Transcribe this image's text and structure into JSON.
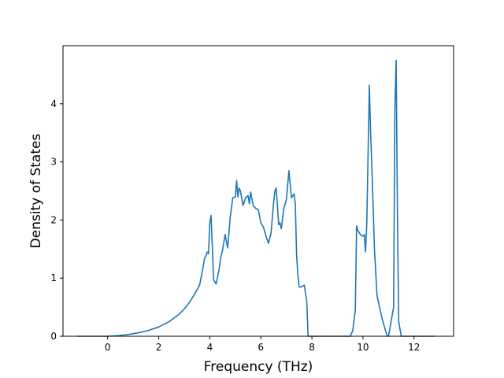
{
  "chart_data": {
    "type": "line",
    "title": "",
    "xlabel": "Frequency (THz)",
    "ylabel": "Density of States",
    "xlim": [
      -1.75,
      13.55
    ],
    "ylim": [
      0,
      5.0
    ],
    "xticks": [
      0,
      2,
      4,
      6,
      8,
      10,
      12
    ],
    "yticks": [
      0,
      1,
      2,
      3,
      4
    ],
    "grid": false,
    "legend": "none",
    "line_color": "#1f77b4",
    "series": [
      {
        "x": [
          -1.2,
          -0.6,
          0.0,
          0.4,
          0.8,
          1.2,
          1.6,
          2.0,
          2.4,
          2.8,
          3.0,
          3.2,
          3.4,
          3.6,
          3.7,
          3.8,
          3.85,
          3.9,
          3.95,
          4.0,
          4.05,
          4.15,
          4.25,
          4.35,
          4.45,
          4.5,
          4.6,
          4.7,
          4.8,
          4.9,
          5.0,
          5.05,
          5.1,
          5.15,
          5.2,
          5.3,
          5.4,
          5.5,
          5.55,
          5.6,
          5.7,
          5.8,
          5.9,
          6.0,
          6.1,
          6.2,
          6.3,
          6.4,
          6.5,
          6.55,
          6.6,
          6.7,
          6.75,
          6.8,
          6.9,
          7.0,
          7.1,
          7.2,
          7.3,
          7.35,
          7.4,
          7.45,
          7.5,
          7.6,
          7.7,
          7.8,
          7.85,
          7.9,
          8.0,
          8.5,
          9.0,
          9.5,
          9.6,
          9.7,
          9.75,
          9.8,
          9.9,
          10.0,
          10.05,
          10.1,
          10.15,
          10.25,
          10.3,
          10.35,
          10.45,
          10.55,
          10.65,
          10.75,
          10.85,
          10.95,
          11.0,
          11.2,
          11.25,
          11.3,
          11.35,
          11.4,
          11.5,
          11.6,
          11.7,
          12.2,
          12.8
        ],
        "values": [
          0.0,
          0.0,
          0.0,
          0.01,
          0.03,
          0.06,
          0.1,
          0.16,
          0.25,
          0.38,
          0.47,
          0.58,
          0.72,
          0.88,
          1.1,
          1.35,
          1.38,
          1.45,
          1.42,
          1.95,
          2.08,
          0.97,
          0.9,
          1.12,
          1.4,
          1.48,
          1.75,
          1.52,
          2.05,
          2.38,
          2.4,
          2.68,
          2.4,
          2.55,
          2.5,
          2.25,
          2.38,
          2.42,
          2.28,
          2.48,
          2.25,
          2.2,
          2.18,
          1.95,
          1.88,
          1.72,
          1.6,
          1.78,
          2.3,
          2.5,
          2.55,
          1.92,
          1.95,
          1.85,
          2.2,
          2.35,
          2.85,
          2.38,
          2.45,
          2.28,
          1.4,
          1.05,
          0.85,
          0.85,
          0.88,
          0.6,
          0.0,
          0.0,
          0.0,
          0.0,
          0.0,
          0.0,
          0.1,
          0.45,
          1.9,
          1.82,
          1.75,
          1.72,
          1.75,
          1.45,
          1.95,
          4.32,
          3.5,
          2.9,
          1.5,
          0.7,
          0.5,
          0.3,
          0.15,
          0.0,
          0.0,
          0.5,
          3.9,
          4.75,
          2.1,
          0.25,
          0.0,
          0.0,
          0.0,
          0.0,
          0.0
        ]
      }
    ]
  }
}
